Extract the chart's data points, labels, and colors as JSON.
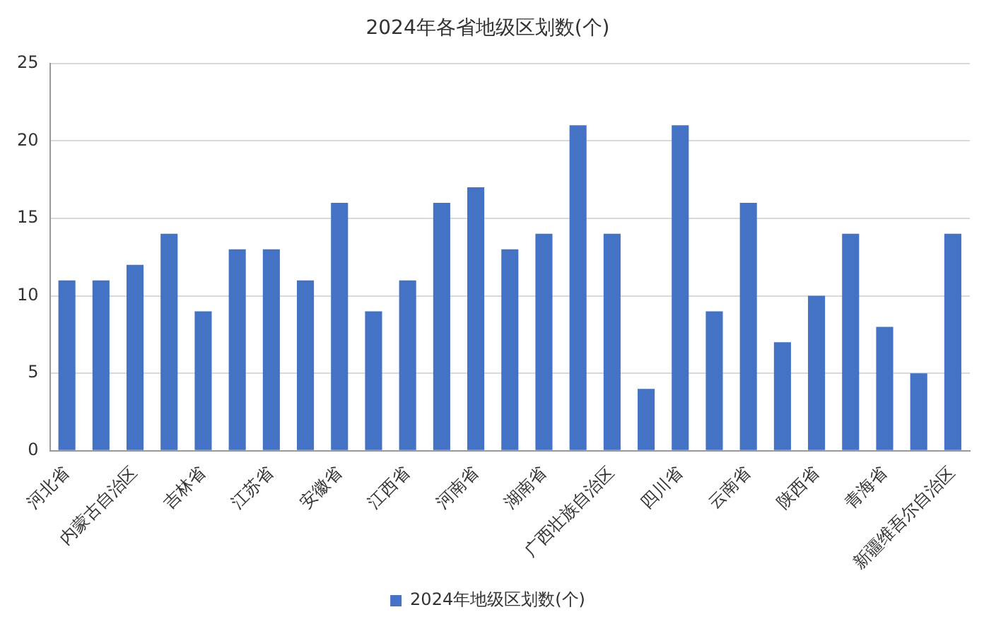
{
  "chart_data": {
    "type": "bar",
    "title": "2024年各省地级区划数(个)",
    "categories": [
      "河北省",
      null,
      "内蒙古自治区",
      null,
      "吉林省",
      null,
      "江苏省",
      null,
      "安徽省",
      null,
      "江西省",
      null,
      "河南省",
      null,
      "湖南省",
      null,
      "广西壮族自治区",
      null,
      "四川省",
      null,
      "云南省",
      null,
      "陕西省",
      null,
      "青海省",
      null,
      "新疆维吾尔自治区"
    ],
    "series": [
      {
        "name": "2024年地级区划数(个)",
        "color": "#4472c4",
        "values": [
          11,
          11,
          12,
          14,
          9,
          13,
          13,
          11,
          16,
          9,
          11,
          16,
          17,
          13,
          14,
          21,
          14,
          4,
          21,
          9,
          16,
          7,
          10,
          14,
          8,
          5,
          14
        ]
      }
    ],
    "ylim": [
      0,
      25
    ],
    "yticks": [
      0,
      5,
      10,
      15,
      20,
      25
    ],
    "grid": "y",
    "legend": "bottom"
  }
}
